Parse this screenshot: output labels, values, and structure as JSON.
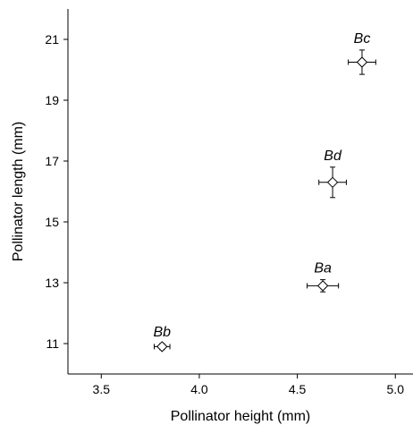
{
  "chart_data": {
    "type": "scatter",
    "title": "",
    "xlabel": "Pollinator height (mm)",
    "ylabel": "Pollinator length (mm)",
    "xlim": [
      3.33,
      5.09
    ],
    "ylim": [
      10.0,
      22.0
    ],
    "xticks": [
      3.5,
      4.0,
      4.5,
      5.0
    ],
    "xtick_labels": [
      "3.5",
      "4.0",
      "4.5",
      "5.0"
    ],
    "yticks": [
      11,
      13,
      15,
      17,
      19,
      21
    ],
    "ytick_labels": [
      "11",
      "13",
      "15",
      "17",
      "19",
      "21"
    ],
    "grid": false,
    "legend": "none",
    "marker": "open-diamond",
    "points": [
      {
        "label": "Bb",
        "x": 3.81,
        "y": 10.9,
        "x_err": 0.04,
        "y_err": 0.1
      },
      {
        "label": "Ba",
        "x": 4.63,
        "y": 12.9,
        "x_err": 0.08,
        "y_err": 0.2
      },
      {
        "label": "Bd",
        "x": 4.68,
        "y": 16.3,
        "x_err": 0.07,
        "y_err": 0.5
      },
      {
        "label": "Bc",
        "x": 4.83,
        "y": 20.25,
        "x_err": 0.07,
        "y_err": 0.4
      }
    ]
  }
}
